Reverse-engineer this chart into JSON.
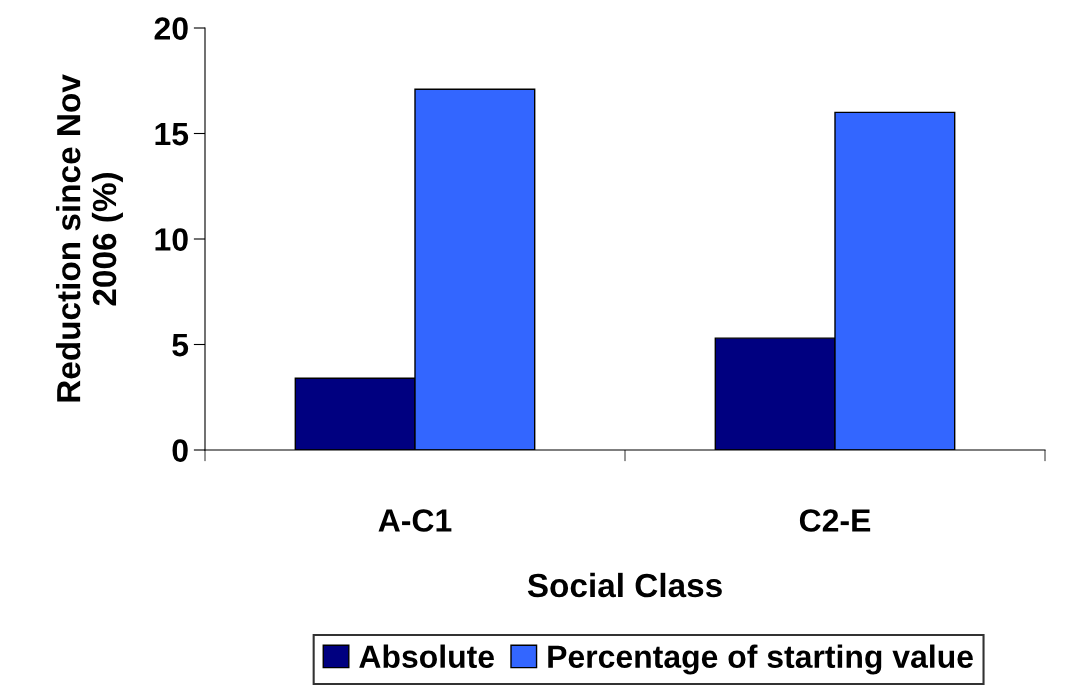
{
  "chart_data": {
    "type": "bar",
    "xlabel": "Social Class",
    "ylabel": "Reduction since Nov\n2006 (%)",
    "categories": [
      "A-C1",
      "C2-E"
    ],
    "series": [
      {
        "name": "Absolute",
        "color": "#000080",
        "values": [
          3.4,
          5.3
        ]
      },
      {
        "name": "Percentage of starting value",
        "color": "#3366ff",
        "values": [
          17.1,
          16.0
        ]
      }
    ],
    "ylim": [
      0,
      20
    ],
    "yticks": [
      0,
      5,
      10,
      15,
      20
    ],
    "grid": false,
    "legend": "bottom"
  }
}
